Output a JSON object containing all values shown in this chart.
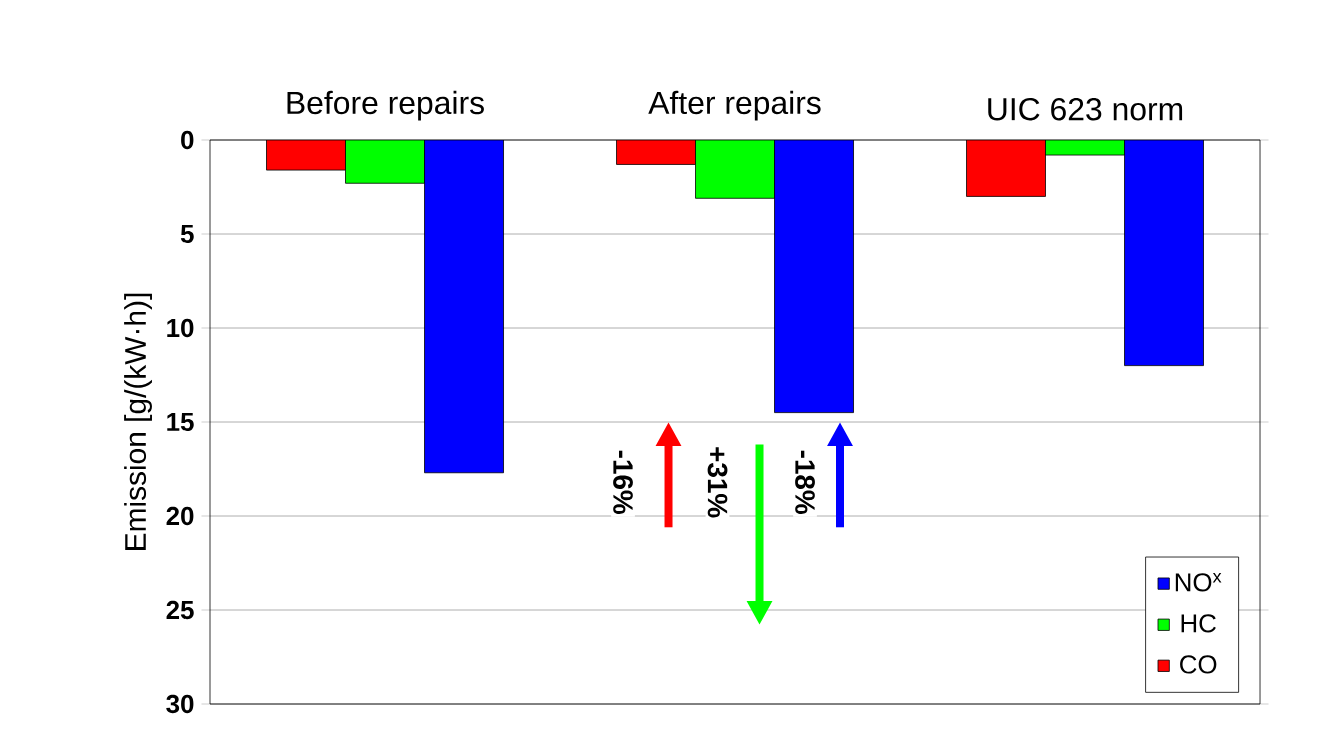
{
  "chart_data": {
    "type": "bar",
    "ylabel": "Emission [g/(kW·h)]",
    "categories": [
      "Before repairs",
      "After repairs",
      "UIC 623 norm"
    ],
    "series": [
      {
        "name": "CO",
        "color": "#ff0000",
        "values": [
          1.6,
          1.3,
          3.0
        ]
      },
      {
        "name": "HC",
        "color": "#00ff00",
        "values": [
          2.3,
          3.1,
          0.8
        ]
      },
      {
        "name": "NO$^{x}$",
        "color": "#0000ff",
        "values": [
          17.7,
          14.5,
          12.0
        ]
      }
    ],
    "ylim": [
      30,
      0
    ],
    "yticks": [
      0,
      5,
      10,
      15,
      20,
      25,
      30
    ],
    "grid": "y",
    "legend": "bottom right",
    "annotations": [
      "-16%",
      "+31%",
      "-18%"
    ]
  }
}
